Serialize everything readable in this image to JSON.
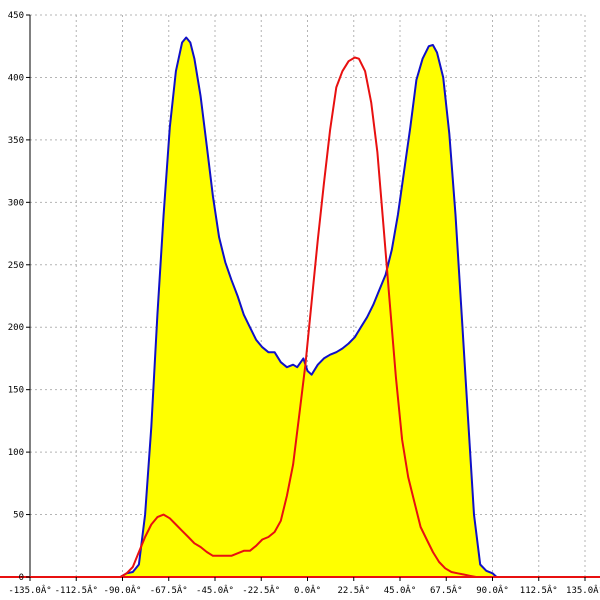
{
  "chart_data": {
    "type": "area",
    "xlim": [
      -135,
      135
    ],
    "ylim": [
      0,
      450
    ],
    "x_tick_labels": [
      {
        "value": -135,
        "label": "-135.0Â°"
      },
      {
        "value": -112.5,
        "label": "-112.5Â°"
      },
      {
        "value": -90,
        "label": "-90.0Â°"
      },
      {
        "value": -67.5,
        "label": "-67.5Â°"
      },
      {
        "value": -45,
        "label": "-45.0Â°"
      },
      {
        "value": -22.5,
        "label": "-22.5Â°"
      },
      {
        "value": 0,
        "label": "0.0Â°"
      },
      {
        "value": 22.5,
        "label": "22.5Â°"
      },
      {
        "value": 45,
        "label": "45.0Â°"
      },
      {
        "value": 67.5,
        "label": "67.5Â°"
      },
      {
        "value": 90,
        "label": "90.0Â°"
      },
      {
        "value": 112.5,
        "label": "112.5Â°"
      },
      {
        "value": 135,
        "label": "135.0Â°"
      }
    ],
    "y_tick_labels": [
      {
        "value": 0,
        "label": "0"
      },
      {
        "value": 50,
        "label": "50"
      },
      {
        "value": 100,
        "label": "100"
      },
      {
        "value": 150,
        "label": "150"
      },
      {
        "value": 200,
        "label": "200"
      },
      {
        "value": 250,
        "label": "250"
      },
      {
        "value": 300,
        "label": "300"
      },
      {
        "value": 350,
        "label": "350"
      },
      {
        "value": 400,
        "label": "400"
      },
      {
        "value": 450,
        "label": "450"
      }
    ],
    "grid": true,
    "series": [
      {
        "color": "#1010c8",
        "fill": "#ffff00",
        "points": [
          [
            -135,
            0
          ],
          [
            -91,
            0
          ],
          [
            -88,
            3
          ],
          [
            -85,
            4
          ],
          [
            -82,
            10
          ],
          [
            -79,
            50
          ],
          [
            -76,
            120
          ],
          [
            -73,
            210
          ],
          [
            -70,
            290
          ],
          [
            -67,
            360
          ],
          [
            -64,
            405
          ],
          [
            -61,
            428
          ],
          [
            -59,
            432
          ],
          [
            -57,
            428
          ],
          [
            -55,
            415
          ],
          [
            -52,
            385
          ],
          [
            -49,
            345
          ],
          [
            -46,
            305
          ],
          [
            -43,
            272
          ],
          [
            -40,
            252
          ],
          [
            -37,
            238
          ],
          [
            -34,
            225
          ],
          [
            -31,
            210
          ],
          [
            -28,
            200
          ],
          [
            -25,
            190
          ],
          [
            -22,
            184
          ],
          [
            -19,
            180
          ],
          [
            -16,
            180
          ],
          [
            -13,
            172
          ],
          [
            -10,
            168
          ],
          [
            -7,
            170
          ],
          [
            -5,
            168
          ],
          [
            -2,
            175
          ],
          [
            0,
            165
          ],
          [
            2,
            162
          ],
          [
            5,
            170
          ],
          [
            8,
            175
          ],
          [
            11,
            178
          ],
          [
            14,
            180
          ],
          [
            17,
            183
          ],
          [
            20,
            187
          ],
          [
            23,
            192
          ],
          [
            26,
            200
          ],
          [
            29,
            208
          ],
          [
            32,
            218
          ],
          [
            35,
            230
          ],
          [
            38,
            242
          ],
          [
            41,
            262
          ],
          [
            44,
            290
          ],
          [
            47,
            325
          ],
          [
            50,
            360
          ],
          [
            53,
            398
          ],
          [
            56,
            415
          ],
          [
            59,
            425
          ],
          [
            61,
            426
          ],
          [
            63,
            420
          ],
          [
            66,
            400
          ],
          [
            69,
            355
          ],
          [
            72,
            290
          ],
          [
            75,
            210
          ],
          [
            78,
            130
          ],
          [
            81,
            50
          ],
          [
            84,
            10
          ],
          [
            87,
            5
          ],
          [
            90,
            3
          ],
          [
            92,
            0
          ],
          [
            135,
            0
          ]
        ]
      },
      {
        "color": "#e81010",
        "points": [
          [
            -135,
            0
          ],
          [
            -91,
            0
          ],
          [
            -88,
            3
          ],
          [
            -85,
            8
          ],
          [
            -82,
            20
          ],
          [
            -79,
            32
          ],
          [
            -76,
            42
          ],
          [
            -73,
            48
          ],
          [
            -70,
            50
          ],
          [
            -67,
            47
          ],
          [
            -64,
            42
          ],
          [
            -61,
            37
          ],
          [
            -58,
            32
          ],
          [
            -55,
            27
          ],
          [
            -52,
            24
          ],
          [
            -49,
            20
          ],
          [
            -46,
            17
          ],
          [
            -43,
            17
          ],
          [
            -40,
            17
          ],
          [
            -37,
            17
          ],
          [
            -34,
            19
          ],
          [
            -31,
            21
          ],
          [
            -28,
            21
          ],
          [
            -25,
            25
          ],
          [
            -22,
            30
          ],
          [
            -19,
            32
          ],
          [
            -16,
            36
          ],
          [
            -13,
            45
          ],
          [
            -10,
            65
          ],
          [
            -7,
            90
          ],
          [
            -4,
            130
          ],
          [
            -1,
            170
          ],
          [
            2,
            220
          ],
          [
            5,
            270
          ],
          [
            8,
            315
          ],
          [
            11,
            358
          ],
          [
            14,
            392
          ],
          [
            17,
            405
          ],
          [
            20,
            413
          ],
          [
            23,
            416
          ],
          [
            25,
            415
          ],
          [
            28,
            405
          ],
          [
            31,
            380
          ],
          [
            34,
            340
          ],
          [
            37,
            280
          ],
          [
            40,
            220
          ],
          [
            43,
            160
          ],
          [
            46,
            110
          ],
          [
            49,
            80
          ],
          [
            52,
            60
          ],
          [
            55,
            40
          ],
          [
            58,
            30
          ],
          [
            61,
            20
          ],
          [
            64,
            12
          ],
          [
            67,
            7
          ],
          [
            70,
            4
          ],
          [
            73,
            3
          ],
          [
            76,
            2
          ],
          [
            79,
            1
          ],
          [
            82,
            0
          ],
          [
            135,
            0
          ]
        ]
      }
    ]
  }
}
